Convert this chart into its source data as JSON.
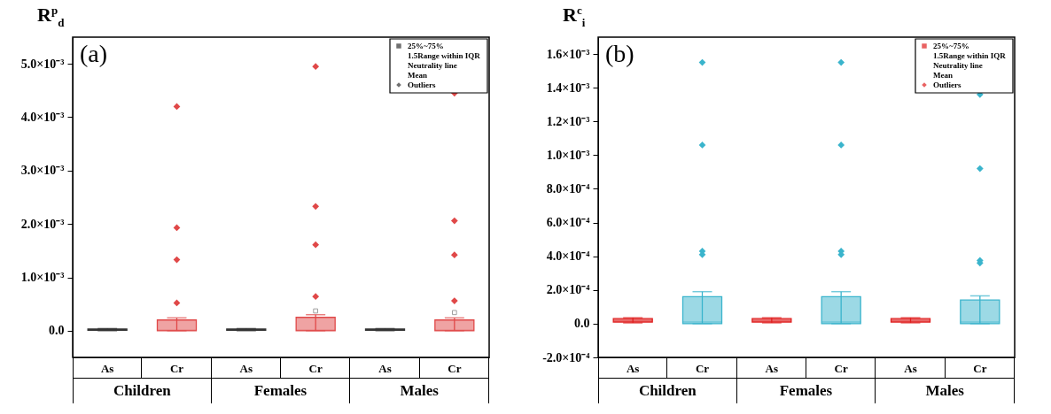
{
  "chart_data": [
    {
      "type": "box",
      "title": "(a)",
      "ylabel": "R$^{p}$$_{d}$",
      "categories": [
        "As",
        "Cr",
        "As",
        "Cr",
        "As",
        "Cr"
      ],
      "colors": [
        "#333333",
        "#e04848",
        "#333333",
        "#e04848",
        "#333333",
        "#e04848"
      ],
      "boxes": [
        {
          "low": 0,
          "q1": 1e-05,
          "median": 2e-05,
          "q3": 3e-05,
          "high": 4e-05
        },
        {
          "low": 0,
          "q1": 0,
          "median": 1e-05,
          "q3": 0.0002,
          "high": 0.00024,
          "outliers": [
            0.0042,
            0.00193,
            0.00133,
            0.00052
          ]
        },
        {
          "low": 0,
          "q1": 1e-05,
          "median": 2e-05,
          "q3": 3e-05,
          "high": 4e-05
        },
        {
          "low": 0,
          "q1": 0,
          "median": 1e-05,
          "q3": 0.00025,
          "high": 0.0003,
          "mean": 0.00037,
          "outliers": [
            0.00495,
            0.00233,
            0.00161,
            0.00064
          ]
        },
        {
          "low": 0,
          "q1": 1e-05,
          "median": 2e-05,
          "q3": 3e-05,
          "high": 4e-05
        },
        {
          "low": 0,
          "q1": 0,
          "median": 1e-05,
          "q3": 0.0002,
          "high": 0.00024,
          "mean": 0.00034,
          "outliers": [
            0.00445,
            0.00206,
            0.00142,
            0.00056
          ]
        }
      ],
      "ylim": [
        -0.0005,
        0.0055
      ],
      "yticks": [
        {
          "value": 0,
          "label": "0.0"
        },
        {
          "value": 0.001,
          "label": "1.0×10⁻³"
        },
        {
          "value": 0.002,
          "label": "2.0×10⁻³"
        },
        {
          "value": 0.003,
          "label": "3.0×10⁻³"
        },
        {
          "value": 0.004,
          "label": "4.0×10⁻³"
        },
        {
          "value": 0.005,
          "label": "5.0×10⁻³"
        }
      ],
      "marker": "diamond",
      "annotations": [
        "Children",
        "Females",
        "Males",
        "25%~75%",
        "1.5Range within IQR",
        "Neutrality line",
        "Mean",
        "Outliers"
      ]
    },
    {
      "type": "box",
      "title": "(b)",
      "ylabel": "R$^{c}$$_{i}$",
      "categories": [
        "As",
        "Cr",
        "As",
        "Cr",
        "As",
        "Cr"
      ],
      "colors": [
        "#e02020",
        "#3ab4cc",
        "#e02020",
        "#3ab4cc",
        "#e02020",
        "#3ab4cc"
      ],
      "boxes": [
        {
          "low": 5e-06,
          "q1": 1e-05,
          "median": 2e-05,
          "q3": 3e-05,
          "high": 3.5e-05
        },
        {
          "low": 0,
          "q1": 0,
          "median": 1e-05,
          "q3": 0.00016,
          "high": 0.00019,
          "outliers": [
            0.00155,
            0.00106,
            0.00043,
            0.00041
          ]
        },
        {
          "low": 5e-06,
          "q1": 1e-05,
          "median": 2e-05,
          "q3": 3e-05,
          "high": 3.5e-05
        },
        {
          "low": 0,
          "q1": 0,
          "median": 1e-05,
          "q3": 0.00016,
          "high": 0.00019,
          "outliers": [
            0.00155,
            0.00106,
            0.00043,
            0.00041
          ]
        },
        {
          "low": 5e-06,
          "q1": 1e-05,
          "median": 2e-05,
          "q3": 3e-05,
          "high": 3.5e-05
        },
        {
          "low": 0,
          "q1": 0,
          "median": 1e-05,
          "q3": 0.00014,
          "high": 0.000165,
          "outliers": [
            0.00136,
            0.00092,
            0.000375,
            0.00036
          ]
        }
      ],
      "ylim": [
        -0.0002,
        0.0017
      ],
      "yticks": [
        {
          "value": -0.0002,
          "label": "-2.0×10⁻⁴"
        },
        {
          "value": 0,
          "label": "0.0"
        },
        {
          "value": 0.0002,
          "label": "2.0×10⁻⁴"
        },
        {
          "value": 0.0004,
          "label": "4.0×10⁻⁴"
        },
        {
          "value": 0.0006,
          "label": "6.0×10⁻⁴"
        },
        {
          "value": 0.0008,
          "label": "8.0×10⁻⁴"
        },
        {
          "value": 0.001,
          "label": "1.0×10⁻³"
        },
        {
          "value": 0.0012,
          "label": "1.2×10⁻³"
        },
        {
          "value": 0.0014,
          "label": "1.4×10⁻³"
        },
        {
          "value": 0.0016,
          "label": "1.6×10⁻³"
        }
      ],
      "marker": "diamond",
      "annotations": [
        "Children",
        "Females",
        "Males",
        "25%~75%",
        "1.5Range within IQR",
        "Neutrality line",
        "Mean",
        "Outliers"
      ]
    }
  ]
}
